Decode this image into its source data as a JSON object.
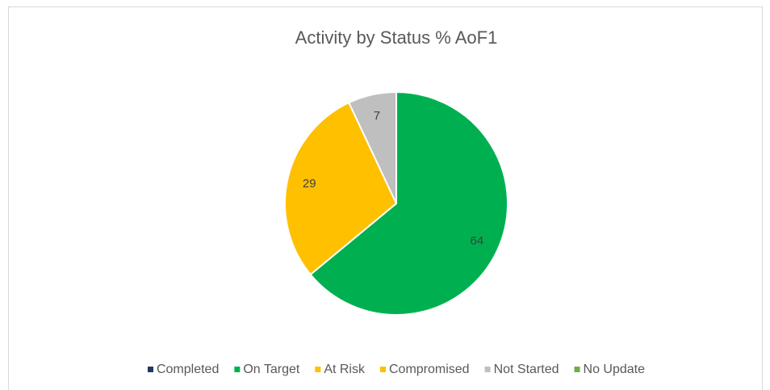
{
  "chart_data": {
    "type": "pie",
    "title": "Activity by Status % AoF1",
    "categories": [
      "Completed",
      "On Target",
      "At Risk",
      "Compromised",
      "Not Started",
      "No Update"
    ],
    "values": [
      0,
      64,
      29,
      0,
      7,
      0
    ],
    "colors": [
      "#1f3864",
      "#00b050",
      "#ffc000",
      "#ffc000",
      "#bfbfbf",
      "#70ad47"
    ],
    "legend": "bottom"
  }
}
